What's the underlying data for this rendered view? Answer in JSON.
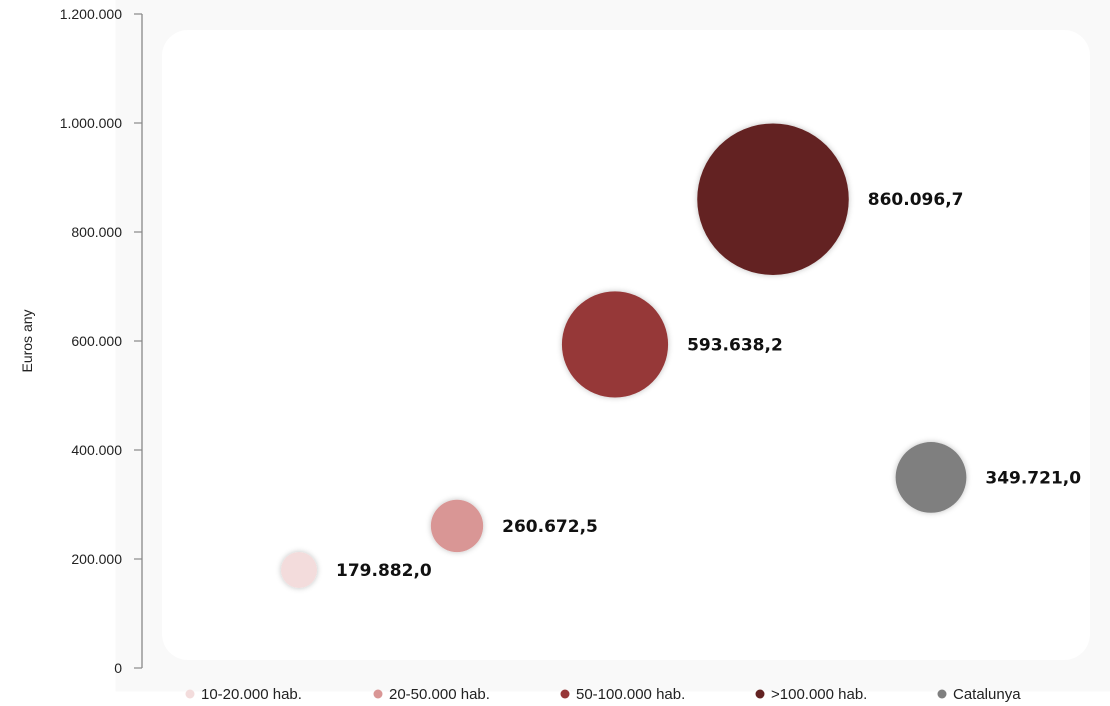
{
  "chart_data": {
    "type": "scatter",
    "subtype": "bubble",
    "title": "",
    "xlabel": "",
    "ylabel": "Euros  any",
    "ylim": [
      0,
      1200000
    ],
    "yticks": [
      0,
      200000,
      400000,
      600000,
      800000,
      1000000,
      1200000
    ],
    "ytick_labels": [
      "0",
      "200.000",
      "400.000",
      "600.000",
      "800.000",
      "1.000.000",
      "1.200.000"
    ],
    "grid": false,
    "legend_position": "bottom",
    "series": [
      {
        "name": "10-20.000 hab.",
        "x": 1,
        "y": 179882.0,
        "label": "179.882,0",
        "size": 1,
        "color": "#f3dcdc"
      },
      {
        "name": "20-50.000 hab.",
        "x": 2,
        "y": 260672.5,
        "label": "260.672,5",
        "size": 1.6,
        "color": "#d99695"
      },
      {
        "name": "50-100.000 hab.",
        "x": 3,
        "y": 593638.2,
        "label": "593.638,2",
        "size": 5.3,
        "color": "#963738"
      },
      {
        "name": ">100.000 hab.",
        "x": 4,
        "y": 860096.7,
        "label": "860.096,7",
        "size": 10.8,
        "color": "#632322"
      },
      {
        "name": "Catalunya",
        "x": 5,
        "y": 349721.0,
        "label": "349.721,0",
        "size": 2.3,
        "color": "#7f7f7f"
      }
    ]
  }
}
